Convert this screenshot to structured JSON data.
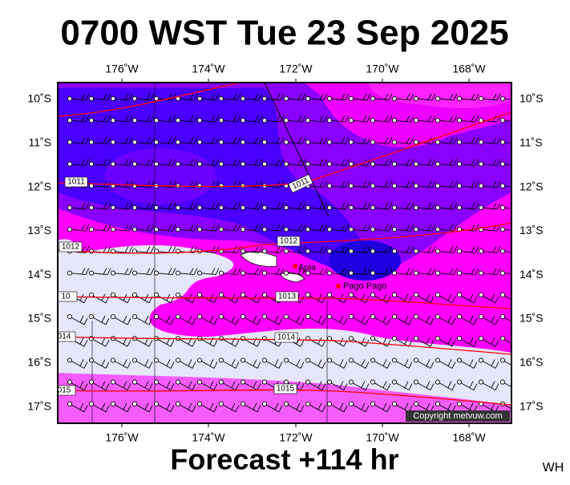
{
  "title": "0700 WST Tue 23 Sep 2025",
  "longitude_labels": [
    "176˚W",
    "174˚W",
    "172˚W",
    "170˚W",
    "168˚W"
  ],
  "latitude_labels": [
    "10˚S",
    "11˚S",
    "12˚S",
    "13˚S",
    "14˚S",
    "15˚S",
    "16˚S",
    "17˚S"
  ],
  "places": [
    {
      "name": "Apia"
    },
    {
      "name": "Pago Pago"
    }
  ],
  "isobar_labels": [
    "1011",
    "1011",
    "1012",
    "1012",
    "10",
    "1013",
    "014",
    "1014",
    "015",
    "1015"
  ],
  "copyright": "Copyright metvuw.com",
  "footer": "Forecast +114 hr",
  "corner": "WH"
}
